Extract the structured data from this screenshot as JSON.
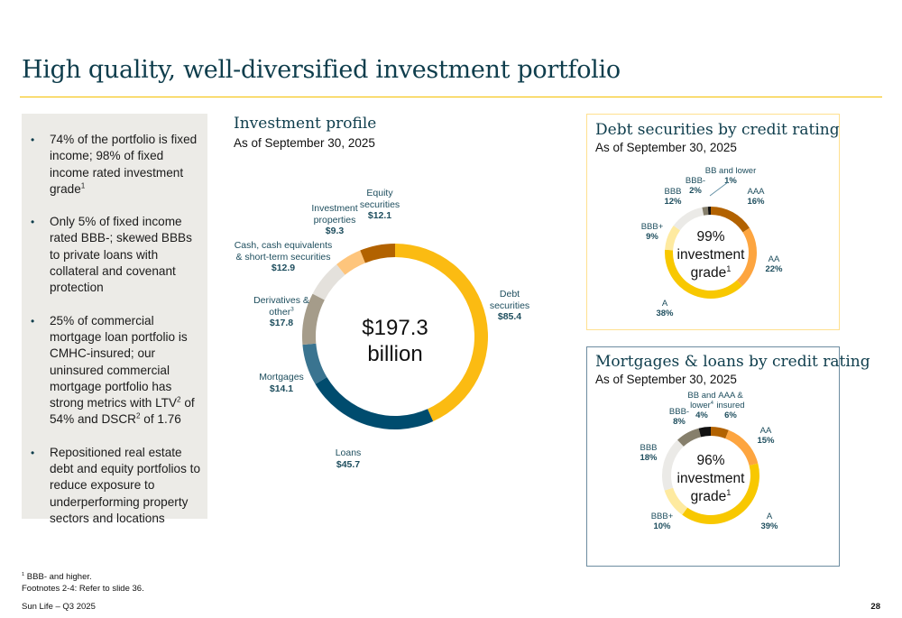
{
  "title": "High quality, well-diversified investment portfolio",
  "bullets": [
    {
      "text": "74% of the portfolio is fixed income; 98% of fixed income rated investment grade",
      "sup": "1",
      "tail": ""
    },
    {
      "text": "Only 5% of fixed income rated BBB-; skewed BBBs to private loans with collateral and covenant protection",
      "sup": "",
      "tail": ""
    },
    {
      "parts": [
        "25% of commercial mortgage loan portfolio is CMHC-insured; our uninsured commercial mortgage portfolio has strong metrics with LTV",
        "2",
        " of 54% and DSCR",
        "2",
        " of 1.76"
      ]
    },
    {
      "text": "Repositioned real estate debt and equity portfolios to reduce exposure to underperforming property sectors and locations",
      "sup": "",
      "tail": ""
    }
  ],
  "investment_profile": {
    "title": "Investment profile",
    "subtitle": "As of September 30, 2025",
    "center_line1": "$197.3",
    "center_line2": "billion"
  },
  "debt_panel": {
    "title": "Debt securities by credit rating",
    "subtitle": "As of September 30, 2025",
    "center_line1": "99%",
    "center_line2": "investment",
    "center_line3": "grade",
    "center_sup": "1"
  },
  "mort_panel": {
    "title": "Mortgages & loans by credit rating",
    "subtitle": "As of September 30, 2025",
    "center_line1": "96%",
    "center_line2": "investment",
    "center_line3": "grade",
    "center_sup": "1"
  },
  "chart_data": [
    {
      "type": "pie",
      "title": "Investment profile",
      "subtitle": "As of September 30, 2025",
      "units": "$ billions",
      "total": 197.3,
      "categories": [
        "Debt securities",
        "Loans",
        "Mortgages",
        "Derivatives & other",
        "Cash, cash equivalents & short-term securities",
        "Investment properties",
        "Equity securities"
      ],
      "values": [
        85.4,
        45.7,
        14.1,
        17.8,
        12.9,
        9.3,
        12.1
      ],
      "labels": [
        "$85.4",
        "$45.7",
        "$14.1",
        "$17.8",
        "$12.9",
        "$9.3",
        "$12.1"
      ],
      "footnote_refs": [
        "",
        "",
        "",
        "3",
        "",
        "",
        ""
      ],
      "colors": [
        "#fbbb12",
        "#004c6e",
        "#3a7490",
        "#a59c8a",
        "#e4e1dc",
        "#fec57c",
        "#b26200"
      ],
      "donut": true,
      "start": "top",
      "direction": "clockwise"
    },
    {
      "type": "pie",
      "title": "Debt securities by credit rating",
      "subtitle": "As of September 30, 2025",
      "categories": [
        "AAA",
        "AA",
        "A",
        "BBB+",
        "BBB",
        "BBB-",
        "BB and lower"
      ],
      "values": [
        16,
        22,
        38,
        9,
        12,
        2,
        1
      ],
      "labels": [
        "16%",
        "22%",
        "38%",
        "9%",
        "12%",
        "2%",
        "1%"
      ],
      "colors": [
        "#b26200",
        "#fda540",
        "#f8c800",
        "#feeaa0",
        "#ebeae7",
        "#867f6c",
        "#111111"
      ],
      "donut": true,
      "start": "top",
      "direction": "clockwise",
      "center_text": "99% investment grade"
    },
    {
      "type": "pie",
      "title": "Mortgages & loans by credit rating",
      "subtitle": "As of September 30, 2025",
      "categories": [
        "AAA & insured",
        "AA",
        "A",
        "BBB+",
        "BBB",
        "BBB-",
        "BB and lower"
      ],
      "values": [
        6,
        15,
        39,
        10,
        18,
        8,
        4
      ],
      "labels": [
        "6%",
        "15%",
        "39%",
        "10%",
        "18%",
        "8%",
        "4%"
      ],
      "footnote_refs": [
        "",
        "",
        "",
        "",
        "",
        "",
        "4"
      ],
      "colors": [
        "#b26200",
        "#fda540",
        "#f8c800",
        "#feeaa0",
        "#ebeae7",
        "#867f6c",
        "#111111"
      ],
      "donut": true,
      "start": "top",
      "direction": "clockwise",
      "center_text": "96% investment grade"
    }
  ],
  "footer": {
    "note1_sup": "1",
    "note1": " BBB- and higher.",
    "note2": "Footnotes 2-4: Refer to slide 36.",
    "source": "Sun Life – Q3 2025",
    "page": "28"
  }
}
